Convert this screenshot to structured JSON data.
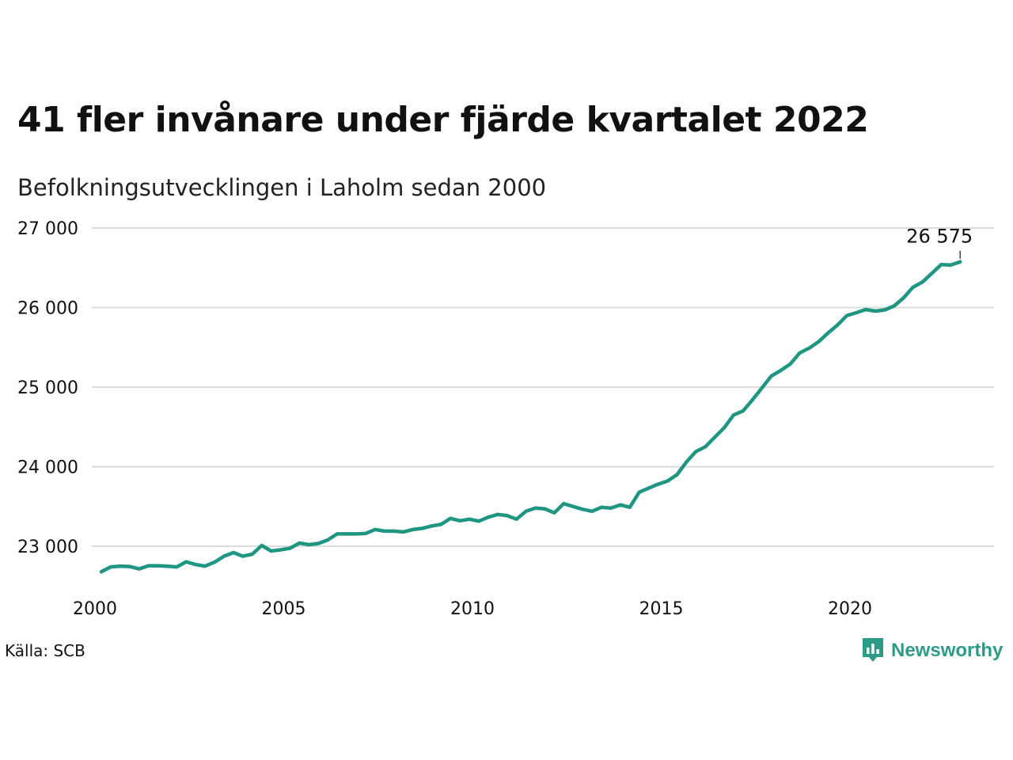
{
  "title": "41 fler invånare under fjärde kvartalet 2022",
  "subtitle": "Befolkningsutvecklingen i Laholm sedan 2000",
  "source": "Källa: SCB",
  "brand": {
    "name": "Newsworthy",
    "color": "#2f9a86"
  },
  "chart_data": {
    "type": "line",
    "title": "41 fler invånare under fjärde kvartalet 2022",
    "subtitle": "Befolkningsutvecklingen i Laholm sedan 2000",
    "xlabel": "",
    "ylabel": "",
    "xlim": [
      2000,
      2023.6
    ],
    "ylim": [
      22500,
      27000
    ],
    "x_ticks": [
      2000,
      2005,
      2010,
      2015,
      2020
    ],
    "x_tick_labels": [
      "2000",
      "2005",
      "2010",
      "2015",
      "2020"
    ],
    "y_ticks": [
      23000,
      24000,
      25000,
      26000,
      27000
    ],
    "y_tick_labels": [
      "23 000",
      "24 000",
      "25 000",
      "26 000",
      "27 000"
    ],
    "grid": "horizontal",
    "line_color": "#1e9682",
    "annotation": {
      "label": "26 575",
      "x": 2022.75,
      "y": 26575
    },
    "series": [
      {
        "x": [
          2000.0,
          2000.25,
          2000.5,
          2000.75,
          2001.0,
          2001.25,
          2001.5,
          2001.75,
          2002.0,
          2002.25,
          2002.5,
          2002.75,
          2003.0,
          2003.25,
          2003.5,
          2003.75,
          2004.0,
          2004.25,
          2004.5,
          2004.75,
          2005.0,
          2005.25,
          2005.5,
          2005.75,
          2006.0,
          2006.25,
          2006.5,
          2006.75,
          2007.0,
          2007.25,
          2007.5,
          2007.75,
          2008.0,
          2008.25,
          2008.5,
          2008.75,
          2009.0,
          2009.25,
          2009.5,
          2009.75,
          2010.0,
          2010.25,
          2010.5,
          2010.75,
          2011.0,
          2011.25,
          2011.5,
          2011.75,
          2012.0,
          2012.25,
          2012.5,
          2012.75,
          2013.0,
          2013.25,
          2013.5,
          2013.75,
          2014.0,
          2014.25,
          2014.5,
          2014.75,
          2015.0,
          2015.25,
          2015.5,
          2015.75,
          2016.0,
          2016.25,
          2016.5,
          2016.75,
          2017.0,
          2017.25,
          2017.5,
          2017.75,
          2018.0,
          2018.25,
          2018.5,
          2018.75,
          2019.0,
          2019.25,
          2019.5,
          2019.75,
          2020.0,
          2020.25,
          2020.5,
          2020.75,
          2021.0,
          2021.25,
          2021.5,
          2021.75,
          2022.0,
          2022.25,
          2022.5,
          2022.75
        ],
        "values": [
          22680,
          22740,
          22750,
          22745,
          22715,
          22755,
          22755,
          22748,
          22740,
          22805,
          22770,
          22750,
          22800,
          22875,
          22920,
          22875,
          22900,
          23010,
          22940,
          22955,
          22975,
          23040,
          23020,
          23035,
          23080,
          23155,
          23155,
          23155,
          23160,
          23210,
          23190,
          23190,
          23180,
          23210,
          23225,
          23255,
          23275,
          23350,
          23320,
          23340,
          23315,
          23365,
          23400,
          23385,
          23340,
          23440,
          23480,
          23470,
          23420,
          23535,
          23500,
          23465,
          23440,
          23490,
          23480,
          23520,
          23490,
          23680,
          23730,
          23780,
          23820,
          23900,
          24060,
          24190,
          24250,
          24370,
          24490,
          24650,
          24700,
          24840,
          24990,
          25140,
          25210,
          25290,
          25430,
          25490,
          25570,
          25680,
          25780,
          25900,
          25935,
          25975,
          25955,
          25970,
          26020,
          26120,
          26255,
          26320,
          26430,
          26540,
          26535,
          26575
        ]
      }
    ]
  }
}
